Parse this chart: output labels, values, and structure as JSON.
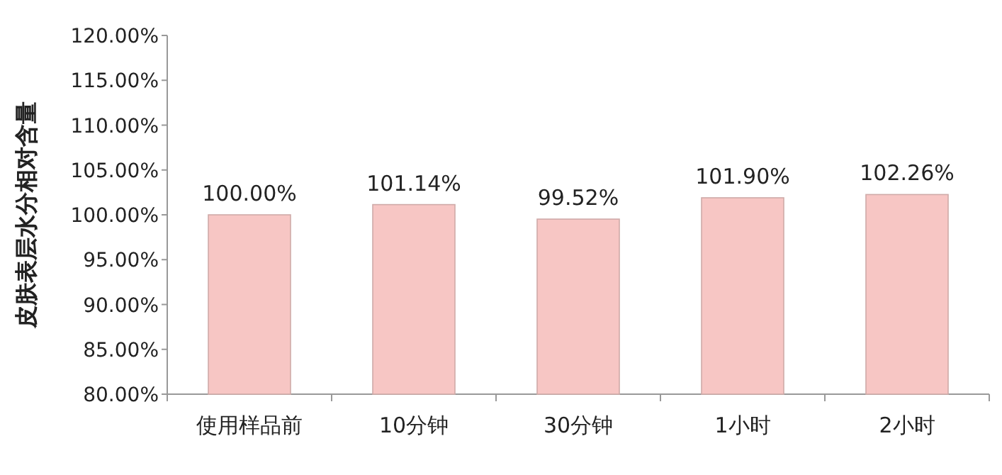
{
  "chart_data": {
    "type": "bar",
    "ylabel": "皮肤表层水分相对含量",
    "categories": [
      "使用样品前",
      "10分钟",
      "30分钟",
      "1小时",
      "2小时"
    ],
    "values": [
      100.0,
      101.14,
      99.52,
      101.9,
      102.26
    ],
    "value_labels": [
      "100.00%",
      "101.14%",
      "99.52%",
      "101.90%",
      "102.26%"
    ],
    "color": "#f7c6c4",
    "ylim": [
      80,
      120
    ],
    "yticks": [
      {
        "value": 80,
        "label": "80.00%"
      },
      {
        "value": 85,
        "label": "85.00%"
      },
      {
        "value": 90,
        "label": "90.00%"
      },
      {
        "value": 95,
        "label": "95.00%"
      },
      {
        "value": 100,
        "label": "100.00%"
      },
      {
        "value": 105,
        "label": "105.00%"
      },
      {
        "value": 110,
        "label": "110.00%"
      },
      {
        "value": 115,
        "label": "115.00%"
      },
      {
        "value": 120,
        "label": "120.00%"
      }
    ]
  }
}
